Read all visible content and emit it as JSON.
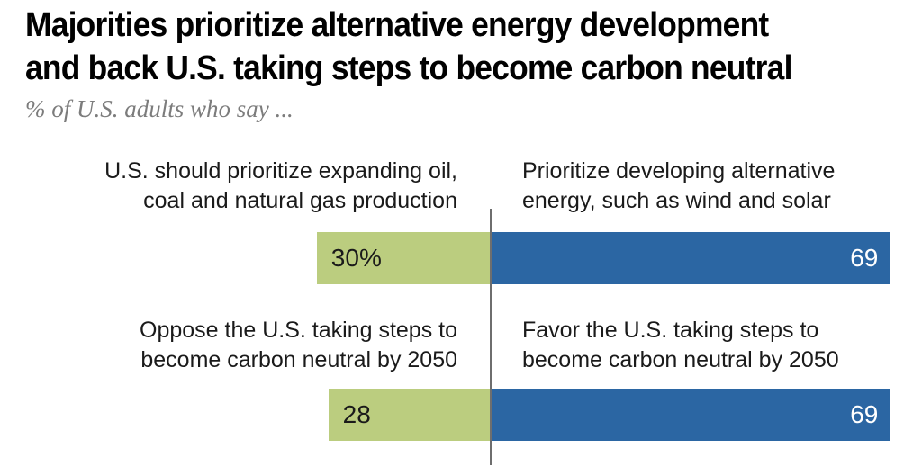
{
  "chart_data": {
    "type": "bar",
    "orientation": "horizontal",
    "variant": "diverging",
    "title": "Majorities prioritize alternative energy development and back U.S. taking steps to become carbon neutral",
    "title_lines": [
      "Majorities prioritize alternative energy development",
      "and back U.S. taking steps to become carbon neutral"
    ],
    "subtitle": "% of U.S. adults who say ...",
    "unit": "percent of U.S. adults",
    "layout_hints": {
      "center_axis_line": true,
      "gridlines": false,
      "legend": "none",
      "value_labels": "inside-bars"
    },
    "rows": [
      {
        "left": {
          "label": "U.S. should prioritize expanding oil, coal and natural gas production",
          "label_lines": [
            "U.S. should prioritize expanding oil,",
            "coal and natural gas production"
          ],
          "value": 30,
          "value_display": "30%"
        },
        "right": {
          "label": "Prioritize developing alternative energy, such as wind and solar",
          "label_lines": [
            "Prioritize developing alternative",
            "energy, such as wind and solar"
          ],
          "value": 69,
          "value_display": "69"
        }
      },
      {
        "left": {
          "label": "Oppose the U.S. taking steps to become carbon neutral by 2050",
          "label_lines": [
            "Oppose the U.S. taking steps to",
            "become carbon neutral by 2050"
          ],
          "value": 28,
          "value_display": "28"
        },
        "right": {
          "label": "Favor the U.S. taking steps to become carbon neutral by 2050",
          "label_lines": [
            "Favor the U.S. taking steps to",
            "become carbon neutral by 2050"
          ],
          "value": 69,
          "value_display": "69"
        }
      }
    ],
    "colors": {
      "left_bar": "#bbcd7f",
      "right_bar": "#2b66a3",
      "axis_line": "#6e6e6e",
      "title_text": "#010101",
      "subtitle_text": "#7c7c7c",
      "label_text": "#1a1a1a",
      "value_on_left_bar": "#1a1a1a",
      "value_on_right_bar": "#ffffff"
    }
  }
}
